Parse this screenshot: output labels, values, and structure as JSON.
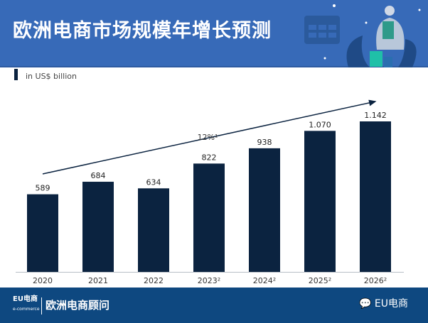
{
  "header": {
    "title": "欧洲电商市场规模年增长预测"
  },
  "footer": {
    "logo": "EU电商",
    "logo_sub": "e-commerce",
    "brand": "欧洲电商顾问",
    "wechat": "EU电商"
  },
  "chart_data": {
    "type": "bar",
    "unit_label": "in US$ billion",
    "categories": [
      "2020",
      "2021",
      "2022",
      "2023²",
      "2024²",
      "2025²",
      "2026²"
    ],
    "values": [
      589,
      684,
      634,
      822,
      938,
      1070,
      1142
    ],
    "value_labels": [
      "589",
      "684",
      "634",
      "822",
      "938",
      "1.070",
      "1.142"
    ],
    "annotation": "12%¹",
    "bar_color": "#0b2340",
    "ylim": [
      0,
      1200
    ]
  }
}
